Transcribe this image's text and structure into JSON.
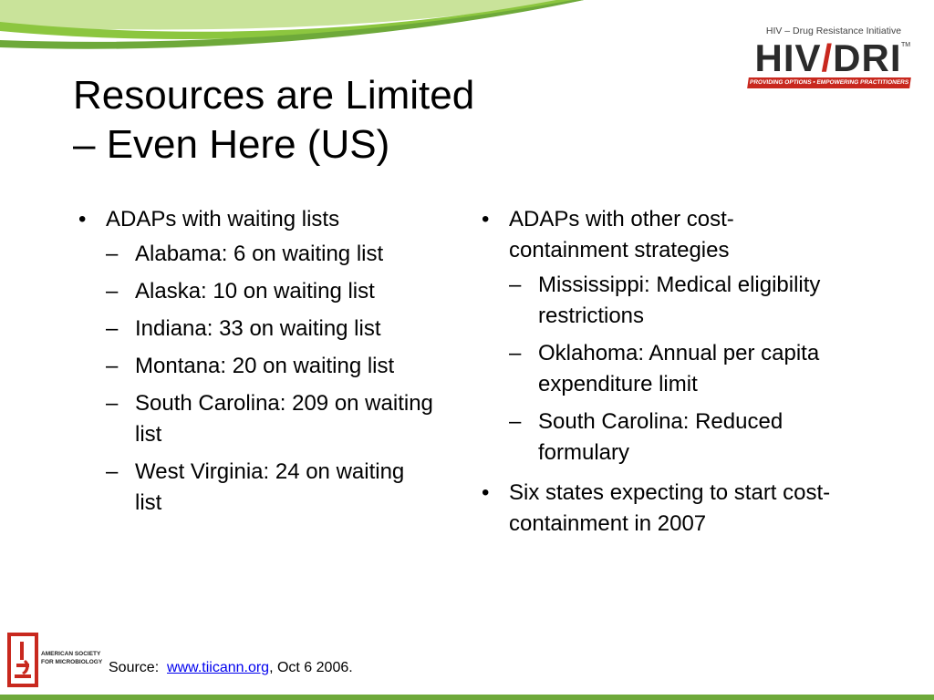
{
  "logo": {
    "tagline": "HIV – Drug Resistance Initiative",
    "wordmark_left": "HIV",
    "wordmark_right": "DRI",
    "trademark": "TM",
    "ribbon": "PROVIDING OPTIONS • EMPOWERING PRACTITIONERS"
  },
  "title": {
    "line1": "Resources are Limited",
    "line2": "– Even Here (US)"
  },
  "left_column": {
    "bullet": "ADAPs with waiting lists",
    "items": [
      "Alabama: 6 on waiting list",
      "Alaska: 10 on waiting list",
      "Indiana: 33 on waiting list",
      "Montana: 20 on waiting list",
      "South Carolina: 209 on waiting list",
      "West Virginia: 24 on waiting list"
    ]
  },
  "right_column": {
    "bullet1": "ADAPs with other cost-containment strategies",
    "items": [
      "Mississippi: Medical eligibility restrictions",
      "Oklahoma: Annual per capita expenditure limit",
      "South Carolina: Reduced formulary"
    ],
    "bullet2": "Six states expecting to start cost-containment in 2007"
  },
  "markers": {
    "bullet": "•",
    "dash": "–"
  },
  "footer": {
    "asm_text": "AMERICAN SOCIETY FOR MICROBIOLOGY",
    "source_prefix": "Source:  ",
    "source_link": "www.tiicann.org",
    "source_suffix": ", Oct 6 2006."
  },
  "colors": {
    "accent_green": "#8cc63f",
    "logo_red": "#c8281e",
    "link_blue": "#0000ee"
  }
}
